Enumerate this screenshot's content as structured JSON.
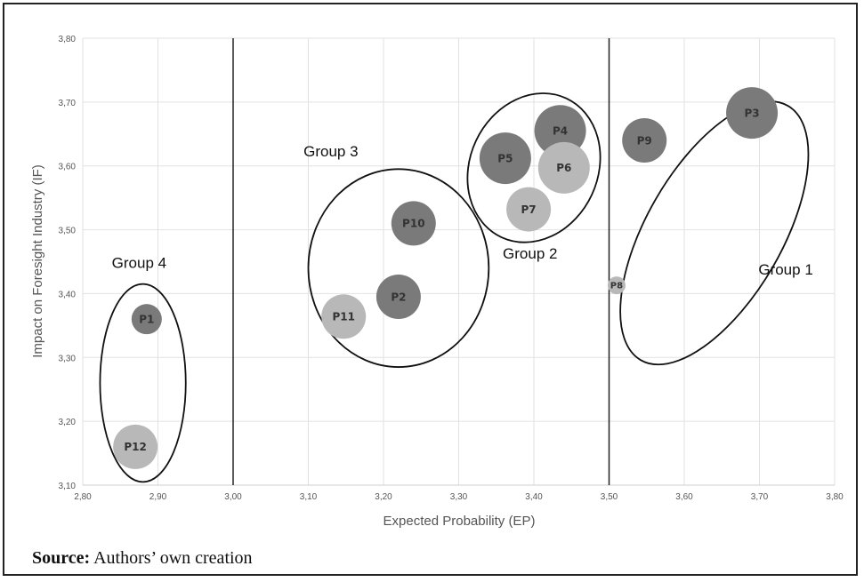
{
  "chart_data": {
    "type": "scatter",
    "title": "",
    "xlabel": "Expected Probability (EP)",
    "ylabel": "Impact on Foresight Industry (IF)",
    "xlim": [
      2.8,
      3.8
    ],
    "ylim": [
      3.1,
      3.8
    ],
    "x_ticks": [
      "2,80",
      "2,90",
      "3,00",
      "3,10",
      "3,20",
      "3,30",
      "3,40",
      "3,50",
      "3,60",
      "3,70",
      "3,80"
    ],
    "y_ticks": [
      "3,10",
      "3,20",
      "3,30",
      "3,40",
      "3,50",
      "3,60",
      "3,70",
      "3,80"
    ],
    "grid": true,
    "vertical_lines": [
      3.0,
      3.5
    ],
    "points": [
      {
        "label": "P1",
        "x": 2.885,
        "y": 3.36,
        "size": "small",
        "shade": "dark"
      },
      {
        "label": "P2",
        "x": 3.22,
        "y": 3.395,
        "size": "medium",
        "shade": "dark"
      },
      {
        "label": "P3",
        "x": 3.69,
        "y": 3.683,
        "size": "large",
        "shade": "dark"
      },
      {
        "label": "P4",
        "x": 3.435,
        "y": 3.655,
        "size": "large",
        "shade": "dark"
      },
      {
        "label": "P5",
        "x": 3.362,
        "y": 3.612,
        "size": "large",
        "shade": "dark"
      },
      {
        "label": "P6",
        "x": 3.44,
        "y": 3.597,
        "size": "large",
        "shade": "light"
      },
      {
        "label": "P7",
        "x": 3.393,
        "y": 3.532,
        "size": "medium",
        "shade": "light"
      },
      {
        "label": "P8",
        "x": 3.51,
        "y": 3.413,
        "size": "tiny",
        "shade": "light"
      },
      {
        "label": "P9",
        "x": 3.547,
        "y": 3.64,
        "size": "medium",
        "shade": "dark"
      },
      {
        "label": "P10",
        "x": 3.24,
        "y": 3.51,
        "size": "medium",
        "shade": "dark"
      },
      {
        "label": "P11",
        "x": 3.147,
        "y": 3.364,
        "size": "medium",
        "shade": "light"
      },
      {
        "label": "P12",
        "x": 2.87,
        "y": 3.16,
        "size": "medium",
        "shade": "light"
      }
    ],
    "groups": [
      {
        "label": "Group 1",
        "cx": 3.64,
        "cy": 3.495,
        "rx": 0.09,
        "ry": 0.23,
        "rotation": 30,
        "label_x": 3.735,
        "label_y": 3.43
      },
      {
        "label": "Group 2",
        "cx": 3.4,
        "cy": 3.597,
        "rx": 0.085,
        "ry": 0.12,
        "rotation": 25,
        "label_x": 3.395,
        "label_y": 3.455
      },
      {
        "label": "Group 3",
        "cx": 3.22,
        "cy": 3.44,
        "rx": 0.12,
        "ry": 0.155,
        "rotation": 0,
        "label_x": 3.13,
        "label_y": 3.615
      },
      {
        "label": "Group 4",
        "cx": 2.88,
        "cy": 3.26,
        "rx": 0.057,
        "ry": 0.155,
        "rotation": 0,
        "label_x": 2.875,
        "label_y": 3.44
      }
    ]
  },
  "caption": {
    "source_label": "Source:",
    "source_text": " Authors’ own creation"
  },
  "colors": {
    "dark": "#7a7a7a",
    "light": "#b8b8b8",
    "grid": "#e2e2e2",
    "axis": "#222222"
  }
}
